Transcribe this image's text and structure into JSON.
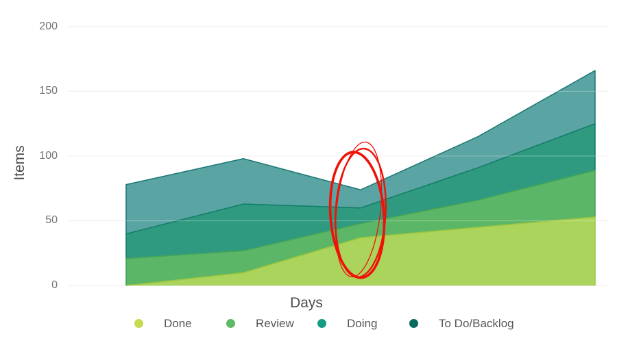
{
  "chart": {
    "y_axis": {
      "label": "Items",
      "ticks": [
        "200",
        "150",
        "100",
        "50",
        "0"
      ]
    },
    "x_axis": {
      "label": "Days",
      "ticks": []
    },
    "grid_color": "#e9e9e9",
    "legend": {
      "items": [
        {
          "label": "Done",
          "color": "#c7da4f"
        },
        {
          "label": "Review",
          "color": "#5fba66"
        },
        {
          "label": "Doing",
          "color": "#169c82"
        },
        {
          "label": "To Do/Backlog",
          "color": "#0a6a60"
        }
      ]
    }
  },
  "chart_data": {
    "type": "area",
    "stacked": true,
    "title": "",
    "xlabel": "Days",
    "ylabel": "Items",
    "x": [
      1,
      2,
      3,
      4,
      5
    ],
    "x_tick_labels": [],
    "ylim": [
      0,
      200
    ],
    "y_ticks": [
      0,
      50,
      100,
      150,
      200
    ],
    "grid": true,
    "legend_position": "bottom",
    "series": [
      {
        "name": "Done",
        "values": [
          0,
          10,
          37,
          45,
          53
        ],
        "fill": "#aad45c",
        "edge": "#9cc63e",
        "legend_color": "#c7da4f"
      },
      {
        "name": "Review",
        "values": [
          21,
          17,
          11,
          21,
          36
        ],
        "fill": "#5cb667",
        "edge": "#43a458",
        "legend_color": "#5fba66"
      },
      {
        "name": "Doing",
        "values": [
          19,
          36,
          12,
          25,
          36
        ],
        "fill": "#309a81",
        "edge": "#117e68",
        "legend_color": "#169c82"
      },
      {
        "name": "To Do/Backlog",
        "values": [
          38,
          35,
          14,
          24,
          41
        ],
        "fill": "#5ba4a4",
        "edge": "#1d7b74",
        "legend_color": "#0a6a60"
      }
    ],
    "cumulative_tops": {
      "Done": [
        0,
        10,
        37,
        45,
        53
      ],
      "Review": [
        21,
        27,
        48,
        66,
        89
      ],
      "Doing": [
        40,
        63,
        60,
        91,
        125
      ],
      "To Do/Backlog": [
        78,
        98,
        74,
        115,
        166
      ]
    }
  },
  "annotation": {
    "type": "hand-drawn ellipse scribble",
    "color": "#ee1208",
    "description": "red marker circling the dip at the middle data point (~70-100 items region)"
  }
}
